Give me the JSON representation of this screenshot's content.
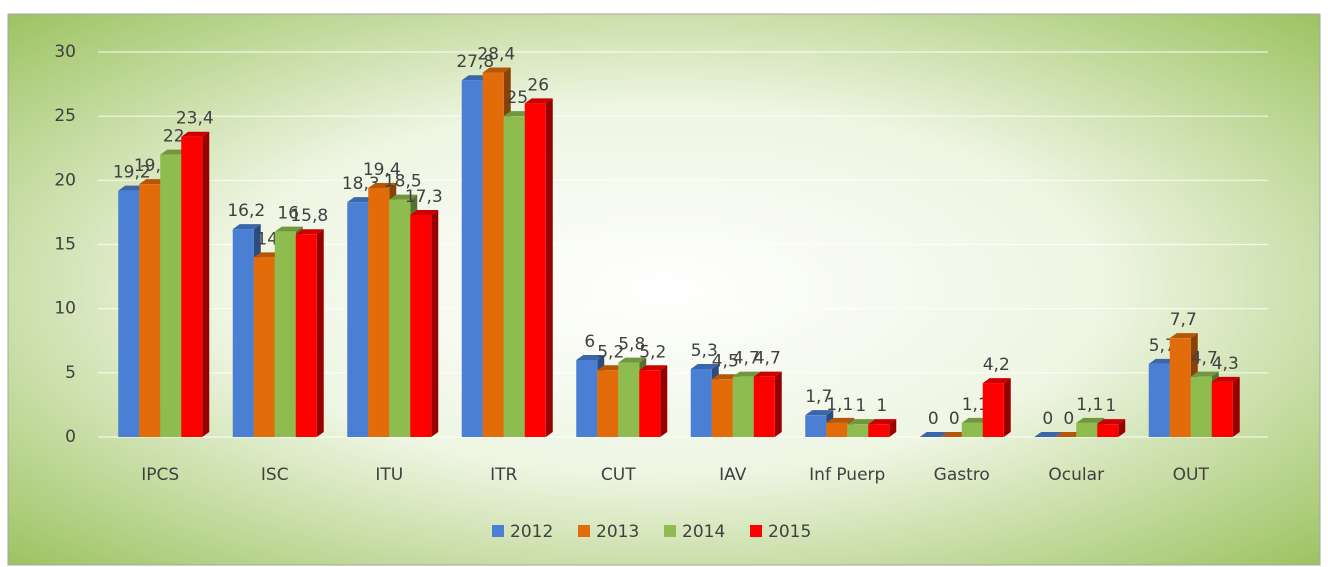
{
  "chart_data": {
    "type": "bar",
    "categories": [
      "IPCS",
      "ISC",
      "ITU",
      "ITR",
      "CUT",
      "IAV",
      "Inf Puerp",
      "Gastro",
      "Ocular",
      "OUT"
    ],
    "series": [
      {
        "name": "2012",
        "color": "#4a7fd4",
        "values": [
          19.2,
          16.2,
          18.3,
          27.8,
          6,
          5.3,
          1.7,
          0,
          0,
          5.7
        ],
        "value_labels": [
          "19,2",
          "16,2",
          "18,3",
          "27,8",
          "6",
          "5,3",
          "1,7",
          "0",
          "0",
          "5,7"
        ]
      },
      {
        "name": "2013",
        "color": "#e36c0a",
        "values": [
          19.7,
          14,
          19.4,
          28.4,
          5.2,
          4.5,
          1.1,
          0,
          0,
          7.7
        ],
        "value_labels": [
          "19,7",
          "14",
          "19,4",
          "28,4",
          "5,2",
          "4,5",
          "1,1",
          "0",
          "0",
          "7,7"
        ]
      },
      {
        "name": "2014",
        "color": "#8fbc4f",
        "values": [
          22,
          16,
          18.5,
          25,
          5.8,
          4.7,
          1,
          1.1,
          1.1,
          4.7
        ],
        "value_labels": [
          "22",
          "16",
          "18,5",
          "25",
          "5,8",
          "4,7",
          "1",
          "1,1",
          "1,1",
          "4,7"
        ]
      },
      {
        "name": "2015",
        "color": "#ff0000",
        "values": [
          23.4,
          15.8,
          17.3,
          26,
          5.2,
          4.7,
          1,
          4.2,
          1,
          4.3
        ],
        "value_labels": [
          "23,4",
          "15,8",
          "17,3",
          "26",
          "5,2",
          "4,7",
          "1",
          "4,2",
          "1",
          "4,3"
        ]
      }
    ],
    "ylim": [
      0,
      30
    ],
    "yticks": [
      0,
      5,
      10,
      15,
      20,
      25,
      30
    ],
    "grid": true,
    "legend": "bottom"
  }
}
